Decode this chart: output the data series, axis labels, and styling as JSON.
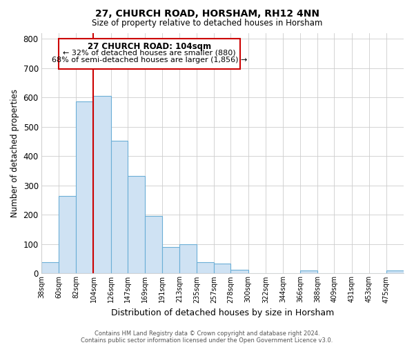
{
  "title": "27, CHURCH ROAD, HORSHAM, RH12 4NN",
  "subtitle": "Size of property relative to detached houses in Horsham",
  "xlabel": "Distribution of detached houses by size in Horsham",
  "ylabel": "Number of detached properties",
  "bar_edges": [
    38,
    60,
    82,
    104,
    126,
    147,
    169,
    191,
    213,
    235,
    257,
    278,
    300,
    322,
    344,
    366,
    388,
    409,
    431,
    453,
    475
  ],
  "bar_heights": [
    38,
    265,
    585,
    605,
    453,
    333,
    196,
    90,
    100,
    38,
    33,
    13,
    0,
    0,
    0,
    10,
    0,
    0,
    0,
    0,
    10
  ],
  "bar_color": "#cfe2f3",
  "bar_edgecolor": "#6baed6",
  "property_line_x": 104,
  "property_line_color": "#cc0000",
  "ylim": [
    0,
    820
  ],
  "yticks": [
    0,
    100,
    200,
    300,
    400,
    500,
    600,
    700,
    800
  ],
  "annotation_title": "27 CHURCH ROAD: 104sqm",
  "annotation_line1": "← 32% of detached houses are smaller (880)",
  "annotation_line2": "68% of semi-detached houses are larger (1,856) →",
  "footer_line1": "Contains HM Land Registry data © Crown copyright and database right 2024.",
  "footer_line2": "Contains public sector information licensed under the Open Government Licence v3.0.",
  "background_color": "#ffffff",
  "grid_color": "#cccccc"
}
